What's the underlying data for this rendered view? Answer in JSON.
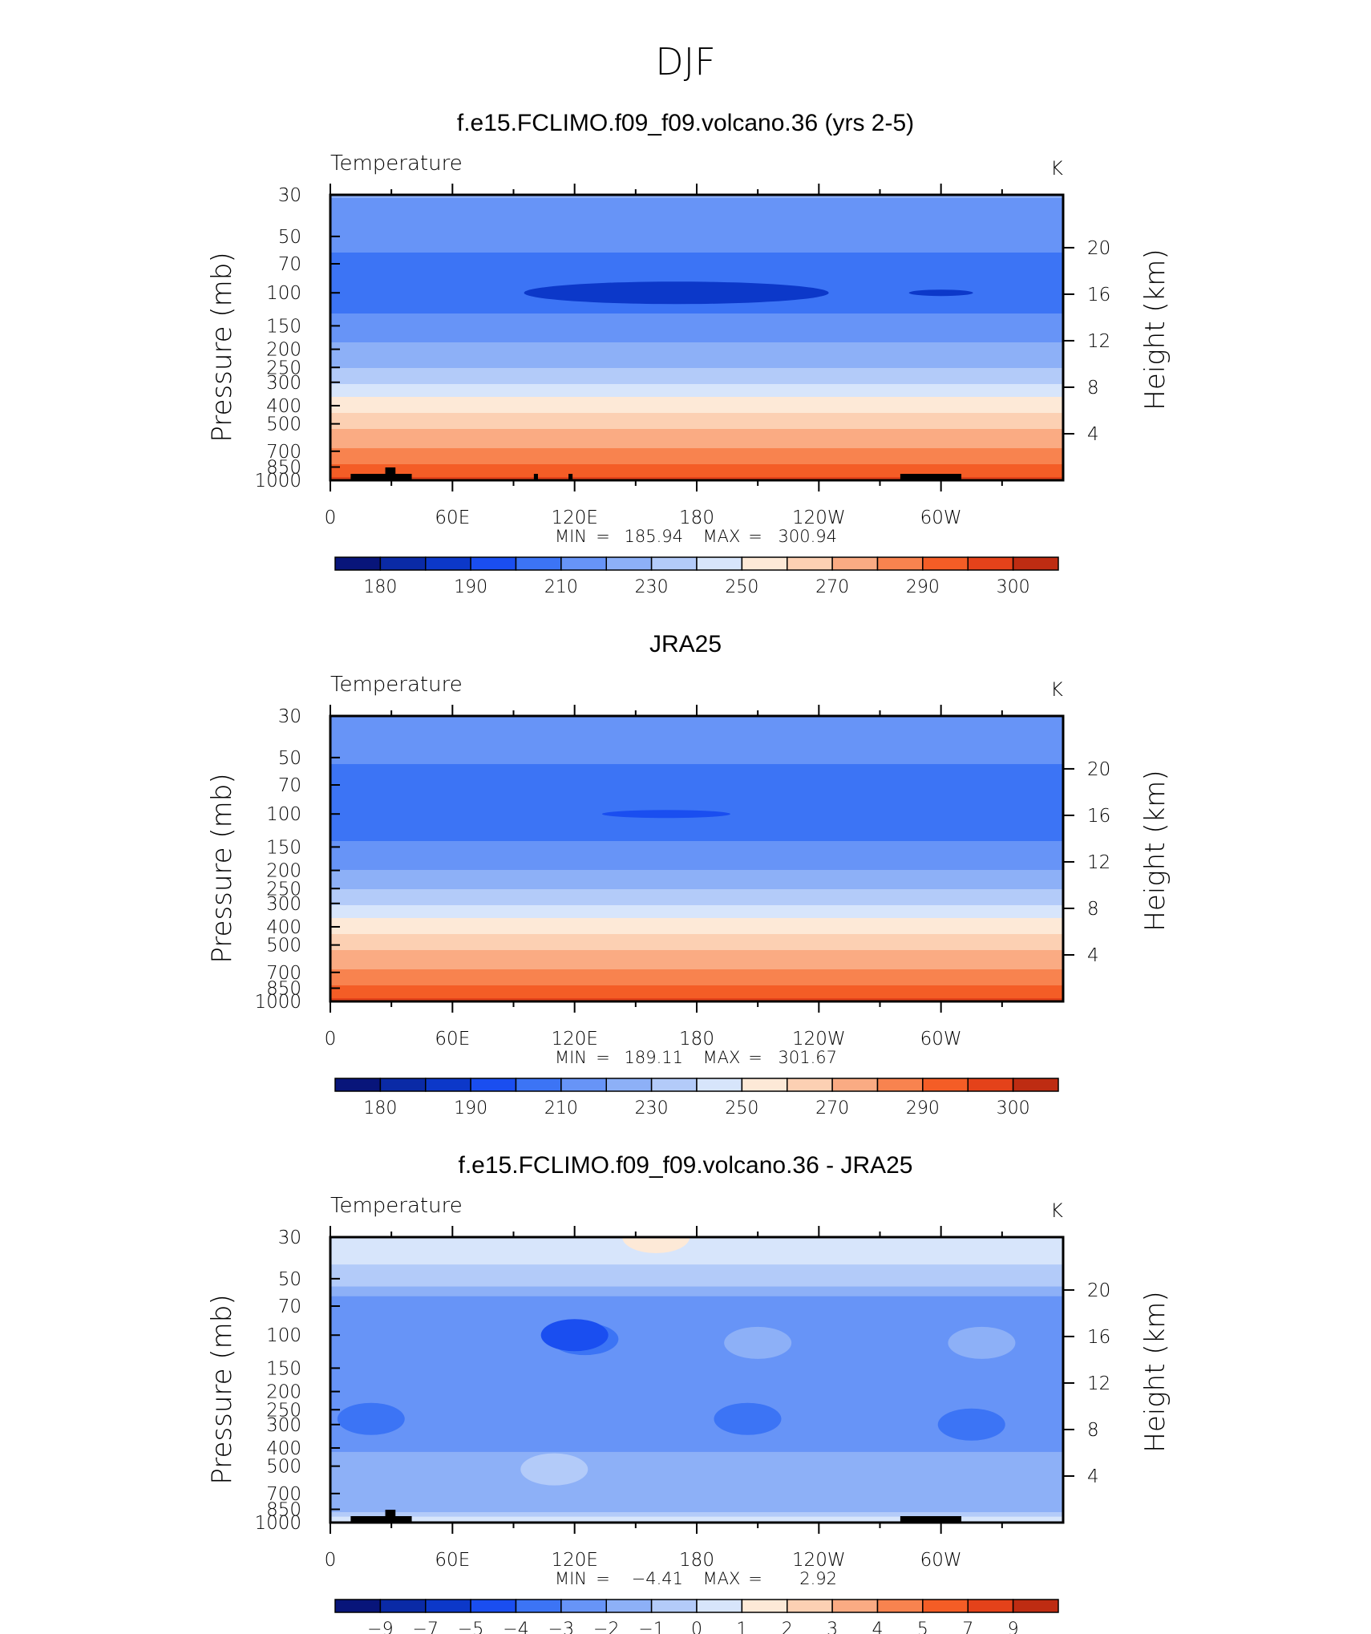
{
  "figure": {
    "title": "DJF"
  },
  "colors": {
    "temperature": [
      "#08157a",
      "#0a2aa6",
      "#0c38c9",
      "#1a4ef0",
      "#3c74f5",
      "#6794f7",
      "#8db0f7",
      "#b3cbf9",
      "#d7e5fb",
      "#fde9d7",
      "#fcd0b3",
      "#faab83",
      "#f8834f",
      "#f45d26",
      "#e4421a",
      "#be2c12",
      "#8c150a"
    ],
    "difference": [
      "#08157a",
      "#0a2aa6",
      "#0c38c9",
      "#1a4ef0",
      "#3c74f5",
      "#6794f7",
      "#8db0f7",
      "#b3cbf9",
      "#d7e5fb",
      "#fde9d7",
      "#fcd0b3",
      "#faab83",
      "#f8834f",
      "#f45d26",
      "#e4421a",
      "#be2c12",
      "#8c150a"
    ]
  },
  "chart_data": [
    {
      "type": "heatmap",
      "title": "f.e15.FCLIMO.f09_f09.volcano.36 (yrs 2-5)",
      "variable_label": "Temperature",
      "units": "K",
      "ylabel": "Pressure (mb)",
      "ylabel_right": "Height (km)",
      "y_ticks": [
        "30",
        "50",
        "70",
        "100",
        "150",
        "200",
        "250",
        "300",
        "400",
        "500",
        "700",
        "850",
        "1000"
      ],
      "y_ticks_values": [
        30,
        50,
        70,
        100,
        150,
        200,
        250,
        300,
        400,
        500,
        700,
        850,
        1000
      ],
      "height_ticks": [
        "20",
        "16",
        "12",
        "8",
        "4"
      ],
      "height_ticks_values": [
        20,
        16,
        12,
        8,
        4
      ],
      "x_ticks": [
        "0",
        "60E",
        "120E",
        "180",
        "120W",
        "60W"
      ],
      "x_ticks_values": [
        0,
        60,
        120,
        180,
        240,
        300
      ],
      "xlim": [
        0,
        360
      ],
      "ylim": [
        1000,
        30
      ],
      "min_label": "MIN",
      "min_value": "185.94",
      "max_label": "MAX",
      "max_value": "300.94",
      "colorbar_levels": [
        "180",
        "190",
        "210",
        "230",
        "250",
        "270",
        "290",
        "300"
      ],
      "colorbar_boxes": 16,
      "vertical_profile": [
        {
          "p": 30,
          "t": 210
        },
        {
          "p": 40,
          "t": 205
        },
        {
          "p": 60,
          "t": 200
        },
        {
          "p": 90,
          "t": 196
        },
        {
          "p": 120,
          "t": 199
        },
        {
          "p": 170,
          "t": 208
        },
        {
          "p": 220,
          "t": 216
        },
        {
          "p": 270,
          "t": 225
        },
        {
          "p": 330,
          "t": 236
        },
        {
          "p": 420,
          "t": 249
        },
        {
          "p": 520,
          "t": 260
        },
        {
          "p": 650,
          "t": 270
        },
        {
          "p": 780,
          "t": 279
        },
        {
          "p": 900,
          "t": 287
        },
        {
          "p": 1000,
          "t": 293
        }
      ],
      "cold_core": {
        "lon": 170,
        "p": 100,
        "t": 188
      },
      "terrain": [
        [
          10,
          40
        ],
        [
          100,
          102
        ],
        [
          117,
          119
        ],
        [
          280,
          310
        ]
      ],
      "terrain_peak": [
        27,
        32
      ]
    },
    {
      "type": "heatmap",
      "title": "JRA25",
      "variable_label": "Temperature",
      "units": "K",
      "ylabel": "Pressure (mb)",
      "ylabel_right": "Height (km)",
      "y_ticks": [
        "30",
        "50",
        "70",
        "100",
        "150",
        "200",
        "250",
        "300",
        "400",
        "500",
        "700",
        "850",
        "1000"
      ],
      "y_ticks_values": [
        30,
        50,
        70,
        100,
        150,
        200,
        250,
        300,
        400,
        500,
        700,
        850,
        1000
      ],
      "height_ticks": [
        "20",
        "16",
        "12",
        "8",
        "4"
      ],
      "height_ticks_values": [
        20,
        16,
        12,
        8,
        4
      ],
      "x_ticks": [
        "0",
        "60E",
        "120E",
        "180",
        "120W",
        "60W"
      ],
      "x_ticks_values": [
        0,
        60,
        120,
        180,
        240,
        300
      ],
      "xlim": [
        0,
        360
      ],
      "ylim": [
        1000,
        30
      ],
      "min_label": "MIN",
      "min_value": "189.11",
      "max_label": "MAX",
      "max_value": "301.67",
      "colorbar_levels": [
        "180",
        "190",
        "210",
        "230",
        "250",
        "270",
        "290",
        "300"
      ],
      "colorbar_boxes": 16,
      "vertical_profile": [
        {
          "p": 30,
          "t": 208
        },
        {
          "p": 40,
          "t": 204
        },
        {
          "p": 60,
          "t": 198
        },
        {
          "p": 90,
          "t": 195
        },
        {
          "p": 120,
          "t": 197
        },
        {
          "p": 170,
          "t": 206
        },
        {
          "p": 220,
          "t": 215
        },
        {
          "p": 270,
          "t": 224
        },
        {
          "p": 330,
          "t": 236
        },
        {
          "p": 420,
          "t": 249
        },
        {
          "p": 520,
          "t": 260
        },
        {
          "p": 650,
          "t": 270
        },
        {
          "p": 780,
          "t": 279
        },
        {
          "p": 900,
          "t": 288
        },
        {
          "p": 1000,
          "t": 295
        }
      ],
      "cold_core": {
        "lon": 165,
        "p": 100,
        "t": 190
      }
    },
    {
      "type": "heatmap",
      "title": "f.e15.FCLIMO.f09_f09.volcano.36 - JRA25",
      "variable_label": "Temperature",
      "units": "K",
      "ylabel": "Pressure (mb)",
      "ylabel_right": "Height (km)",
      "y_ticks": [
        "30",
        "50",
        "70",
        "100",
        "150",
        "200",
        "250",
        "300",
        "400",
        "500",
        "700",
        "850",
        "1000"
      ],
      "y_ticks_values": [
        30,
        50,
        70,
        100,
        150,
        200,
        250,
        300,
        400,
        500,
        700,
        850,
        1000
      ],
      "height_ticks": [
        "20",
        "16",
        "12",
        "8",
        "4"
      ],
      "height_ticks_values": [
        20,
        16,
        12,
        8,
        4
      ],
      "x_ticks": [
        "0",
        "60E",
        "120E",
        "180",
        "120W",
        "60W"
      ],
      "x_ticks_values": [
        0,
        60,
        120,
        180,
        240,
        300
      ],
      "xlim": [
        0,
        360
      ],
      "ylim": [
        1000,
        30
      ],
      "min_label": "MIN",
      "min_value": "−4.41",
      "max_label": "MAX",
      "max_value": "2.92",
      "colorbar_levels": [
        "−9",
        "−7",
        "−5",
        "−4",
        "−3",
        "−2",
        "−1",
        "0",
        "1",
        "2",
        "3",
        "4",
        "5",
        "7",
        "9"
      ],
      "colorbar_boxes": 16,
      "difference_bands": [
        {
          "p_top": 30,
          "p_bot": 42,
          "level": 0.5
        },
        {
          "p_top": 42,
          "p_bot": 55,
          "level": -0.5
        },
        {
          "p_top": 55,
          "p_bot": 62,
          "level": -1.5
        },
        {
          "p_top": 62,
          "p_bot": 420,
          "level": -2.5
        },
        {
          "p_top": 420,
          "p_bot": 600,
          "level": -1.5
        },
        {
          "p_top": 600,
          "p_bot": 880,
          "level": -1.5
        },
        {
          "p_top": 880,
          "p_bot": 930,
          "level": -0.5
        },
        {
          "p_top": 930,
          "p_bot": 1000,
          "level": 0.5
        }
      ],
      "difference_blobs": [
        {
          "lon": 125,
          "p": 105,
          "level": -3.5
        },
        {
          "lon": 120,
          "p": 100,
          "level": -4.5
        },
        {
          "lon": 210,
          "p": 110,
          "level": -1.5
        },
        {
          "lon": 320,
          "p": 110,
          "level": -1.5
        },
        {
          "lon": 20,
          "p": 280,
          "level": -3.5
        },
        {
          "lon": 205,
          "p": 280,
          "level": -3.5
        },
        {
          "lon": 315,
          "p": 300,
          "level": -3.5
        },
        {
          "lon": 110,
          "p": 520,
          "level": -0.5
        },
        {
          "lon": 160,
          "p": 30,
          "level": 1.5
        }
      ],
      "terrain": [
        [
          10,
          40
        ],
        [
          280,
          310
        ]
      ],
      "terrain_peak": [
        27,
        32
      ]
    }
  ]
}
